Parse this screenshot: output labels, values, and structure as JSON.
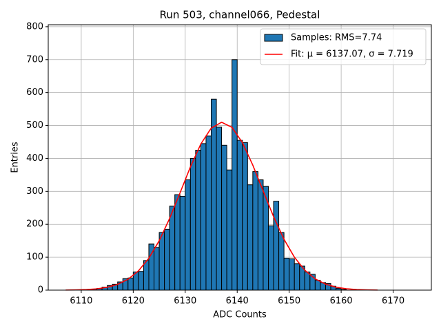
{
  "chart_data": {
    "type": "histogram",
    "title": "Run 503, channel066, Pedestal",
    "xlabel": "ADC Counts",
    "ylabel": "Entries",
    "xlim": [
      6103.65,
      6177.35
    ],
    "ylim": [
      0,
      806
    ],
    "xticks": [
      6110,
      6120,
      6130,
      6140,
      6150,
      6160,
      6170
    ],
    "yticks": [
      0,
      100,
      200,
      300,
      400,
      500,
      600,
      700,
      800
    ],
    "grid": true,
    "legend": "upper right",
    "bins": [
      6110,
      6111,
      6112,
      6113,
      6114,
      6115,
      6116,
      6117,
      6118,
      6119,
      6120,
      6121,
      6122,
      6123,
      6124,
      6125,
      6126,
      6127,
      6128,
      6129,
      6130,
      6131,
      6132,
      6133,
      6134,
      6135,
      6136,
      6137,
      6138,
      6139,
      6140,
      6141,
      6142,
      6143,
      6144,
      6145,
      6146,
      6147,
      6148,
      6149,
      6150,
      6151,
      6152,
      6153,
      6154,
      6155,
      6156,
      6157,
      6158,
      6159,
      6160,
      6161
    ],
    "series": [
      {
        "type": "histogram",
        "name": "Samples: RMS=7.74",
        "color": "#1f77b4",
        "edgecolor": "#000000",
        "values": [
          1,
          2,
          3,
          5,
          9,
          14,
          18,
          25,
          35,
          37,
          55,
          57,
          90,
          140,
          130,
          175,
          185,
          255,
          290,
          285,
          335,
          400,
          425,
          445,
          468,
          580,
          495,
          440,
          365,
          700,
          455,
          448,
          320,
          360,
          335,
          315,
          195,
          270,
          175,
          97,
          95,
          80,
          73,
          55,
          48,
          30,
          23,
          20,
          12,
          5,
          2
        ]
      },
      {
        "type": "line",
        "name": "Fit: μ = 6137.07, σ = 7.719",
        "color": "#ff0000",
        "x": [
          6107,
          6109,
          6111,
          6113,
          6115,
          6117,
          6119,
          6121,
          6123,
          6125,
          6127,
          6129,
          6131,
          6133,
          6135,
          6137,
          6139,
          6141,
          6143,
          6145,
          6147,
          6149,
          6151,
          6153,
          6155,
          6157,
          6159,
          6161,
          6163,
          6165,
          6167
        ],
        "values": [
          0.26,
          0.69,
          1.7,
          3.9,
          8.6,
          17.4,
          32.9,
          58.4,
          96.9,
          150.2,
          217.8,
          295.2,
          374.3,
          443.8,
          492,
          510,
          494.3,
          448,
          379.7,
          300.9,
          223,
          154.6,
          100.2,
          60.6,
          34.3,
          18.2,
          9.0,
          4.2,
          1.8,
          0.73,
          0.28
        ]
      }
    ]
  }
}
